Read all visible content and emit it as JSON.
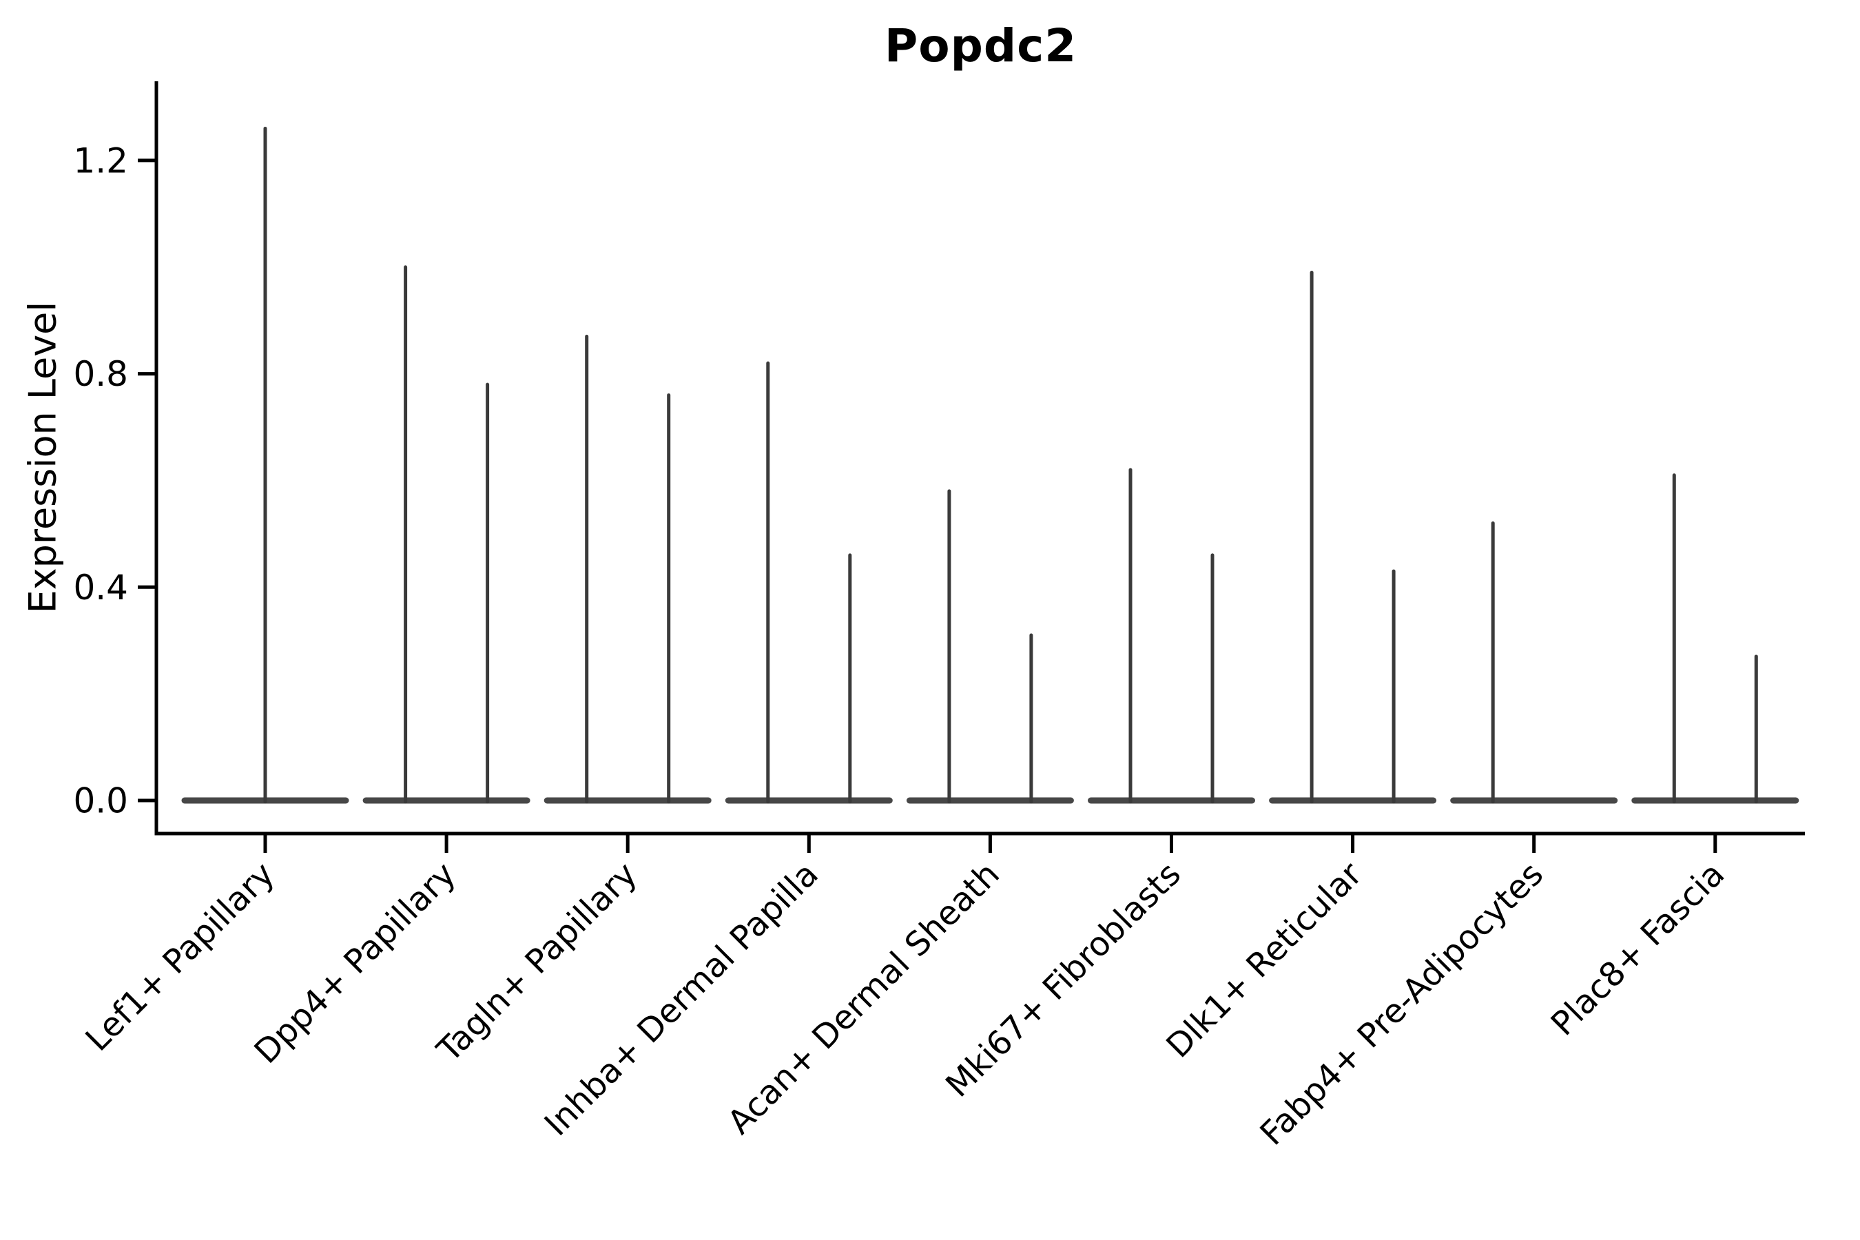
{
  "page": {
    "background": "#ffffff"
  },
  "chart_data": {
    "type": "violin",
    "title": "Popdc2",
    "ylabel": "Expression Level",
    "xlabel": "",
    "grid": false,
    "legend_position": "none",
    "ylim": [
      -0.06,
      1.35
    ],
    "ytick_values": [
      0,
      0.4,
      0.8,
      1.2
    ],
    "ytick_labels": [
      "0.0",
      "0.4",
      "0.8",
      "1.2"
    ],
    "categories": [
      "Lef1+ Papillary",
      "Dpp4+ Papillary",
      "Tagln+ Papillary",
      "Inhba+ Dermal Papilla",
      "Acan+ Dermal Sheath",
      "Mki67+ Fibroblasts",
      "Dlk1+ Reticular",
      "Fabp4+ Pre-Adipocytes",
      "Plac8+ Fascia"
    ],
    "violins": [
      {
        "category": "Lef1+ Papillary",
        "group": "center",
        "max_expression": 1.26
      },
      {
        "category": "Dpp4+ Papillary",
        "group": "left",
        "max_expression": 1.0
      },
      {
        "category": "Dpp4+ Papillary",
        "group": "right",
        "max_expression": 0.78
      },
      {
        "category": "Tagln+ Papillary",
        "group": "left",
        "max_expression": 0.87
      },
      {
        "category": "Tagln+ Papillary",
        "group": "right",
        "max_expression": 0.76
      },
      {
        "category": "Inhba+ Dermal Papilla",
        "group": "left",
        "max_expression": 0.82
      },
      {
        "category": "Inhba+ Dermal Papilla",
        "group": "right",
        "max_expression": 0.46
      },
      {
        "category": "Acan+ Dermal Sheath",
        "group": "left",
        "max_expression": 0.58
      },
      {
        "category": "Acan+ Dermal Sheath",
        "group": "right",
        "max_expression": 0.31
      },
      {
        "category": "Mki67+ Fibroblasts",
        "group": "left",
        "max_expression": 0.62
      },
      {
        "category": "Mki67+ Fibroblasts",
        "group": "right",
        "max_expression": 0.46
      },
      {
        "category": "Dlk1+ Reticular",
        "group": "left",
        "max_expression": 0.99
      },
      {
        "category": "Dlk1+ Reticular",
        "group": "right",
        "max_expression": 0.43
      },
      {
        "category": "Fabp4+ Pre-Adipocytes",
        "group": "left",
        "max_expression": 0.52
      },
      {
        "category": "Fabp4+ Pre-Adipocytes",
        "group": "right",
        "max_expression": 0.0
      },
      {
        "category": "Plac8+ Fascia",
        "group": "left",
        "max_expression": 0.61
      },
      {
        "category": "Plac8+ Fascia",
        "group": "right",
        "max_expression": 0.27
      }
    ],
    "colors": {
      "violin_line": "#3a3a3a",
      "baseline_blob": "#474747",
      "spine": "#000000",
      "text": "#000000"
    }
  }
}
